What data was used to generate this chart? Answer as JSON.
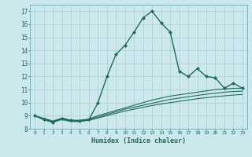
{
  "xlabel": "Humidex (Indice chaleur)",
  "background_color": "#cce8ec",
  "grid_color": "#aacdd4",
  "line_color": "#1e6b5e",
  "xlim": [
    -0.5,
    23.5
  ],
  "ylim": [
    8,
    17.5
  ],
  "xticks": [
    0,
    1,
    2,
    3,
    4,
    5,
    6,
    7,
    8,
    9,
    10,
    11,
    12,
    13,
    14,
    15,
    16,
    17,
    18,
    19,
    20,
    21,
    22,
    23
  ],
  "yticks": [
    8,
    9,
    10,
    11,
    12,
    13,
    14,
    15,
    16,
    17
  ],
  "series": [
    {
      "x": [
        0,
        1,
        2,
        3,
        4,
        5,
        6,
        7,
        8,
        9,
        10,
        11,
        12,
        13,
        14,
        15,
        16,
        17,
        18,
        19,
        20,
        21,
        22,
        23
      ],
      "y": [
        9.0,
        8.7,
        8.5,
        8.8,
        8.65,
        8.6,
        8.7,
        10.0,
        12.0,
        13.7,
        14.4,
        15.4,
        16.5,
        17.0,
        16.1,
        15.4,
        12.4,
        12.0,
        12.6,
        12.0,
        11.9,
        11.1,
        11.5,
        11.1
      ],
      "marker": "D",
      "markersize": 2.0,
      "linewidth": 1.0
    },
    {
      "x": [
        0,
        1,
        2,
        3,
        4,
        5,
        6,
        7,
        8,
        9,
        10,
        11,
        12,
        13,
        14,
        15,
        16,
        17,
        18,
        19,
        20,
        21,
        22,
        23
      ],
      "y": [
        9.0,
        8.8,
        8.6,
        8.8,
        8.65,
        8.65,
        8.75,
        9.0,
        9.2,
        9.4,
        9.6,
        9.8,
        10.0,
        10.2,
        10.35,
        10.5,
        10.6,
        10.7,
        10.8,
        10.9,
        11.0,
        11.05,
        11.1,
        11.1
      ],
      "marker": null,
      "linewidth": 0.8
    },
    {
      "x": [
        0,
        1,
        2,
        3,
        4,
        5,
        6,
        7,
        8,
        9,
        10,
        11,
        12,
        13,
        14,
        15,
        16,
        17,
        18,
        19,
        20,
        21,
        22,
        23
      ],
      "y": [
        9.0,
        8.75,
        8.55,
        8.75,
        8.6,
        8.6,
        8.7,
        8.9,
        9.1,
        9.3,
        9.5,
        9.65,
        9.8,
        9.95,
        10.1,
        10.25,
        10.35,
        10.45,
        10.55,
        10.65,
        10.72,
        10.8,
        10.85,
        10.88
      ],
      "marker": null,
      "linewidth": 0.8
    },
    {
      "x": [
        0,
        1,
        2,
        3,
        4,
        5,
        6,
        7,
        8,
        9,
        10,
        11,
        12,
        13,
        14,
        15,
        16,
        17,
        18,
        19,
        20,
        21,
        22,
        23
      ],
      "y": [
        9.0,
        8.7,
        8.5,
        8.7,
        8.55,
        8.55,
        8.65,
        8.82,
        9.0,
        9.18,
        9.36,
        9.5,
        9.64,
        9.78,
        9.9,
        10.0,
        10.1,
        10.2,
        10.3,
        10.38,
        10.45,
        10.52,
        10.58,
        10.63
      ],
      "marker": null,
      "linewidth": 0.8
    }
  ]
}
